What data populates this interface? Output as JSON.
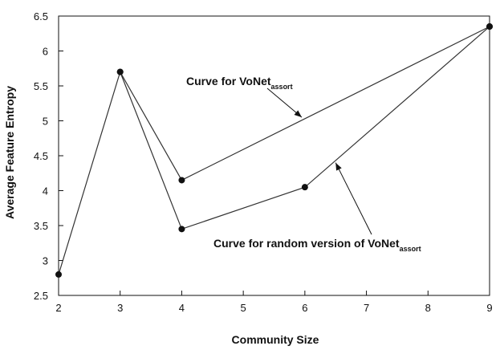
{
  "chart_data": {
    "type": "line",
    "xlabel": "Community Size",
    "ylabel": "Average Feature Entropy",
    "xticks": [
      2,
      3,
      4,
      5,
      6,
      7,
      8,
      9
    ],
    "yticks": [
      2.5,
      3,
      3.5,
      4,
      4.5,
      5,
      5.5,
      6,
      6.5
    ],
    "xlim": [
      2,
      9
    ],
    "ylim": [
      2.5,
      6.5
    ],
    "grid": false,
    "series": [
      {
        "x": [
          2,
          3,
          4,
          9
        ],
        "y": [
          2.8,
          5.7,
          4.15,
          6.35
        ]
      },
      {
        "x": [
          3,
          4,
          6,
          9
        ],
        "y": [
          5.7,
          3.45,
          4.05,
          6.35
        ]
      }
    ],
    "annotations": [
      {
        "prefix": "Curve for VoNet",
        "subscript": "assort",
        "arrow_to": {
          "x": 5.95,
          "y": 5.05
        }
      },
      {
        "prefix": "Curve for random version of VoNet",
        "subscript": "assort",
        "arrow_to": {
          "x": 6.5,
          "y": 4.4
        }
      }
    ]
  }
}
